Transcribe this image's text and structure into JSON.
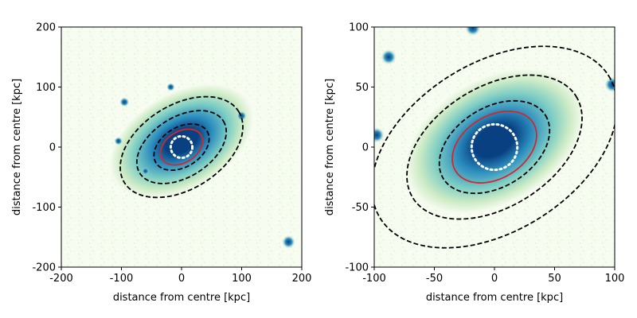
{
  "chart_data": [
    {
      "type": "image",
      "description_role": "left panel",
      "xlabel": "distance from centre [kpc]",
      "ylabel": "distance from centre [kpc]",
      "xlim": [
        -200,
        200
      ],
      "ylim": [
        -200,
        200
      ],
      "xticks": [
        -200,
        -100,
        0,
        100,
        200
      ],
      "yticks": [
        -200,
        -100,
        0,
        100,
        200
      ],
      "colormap": [
        "#f7fcf0",
        "#ccebc5",
        "#7bccc4",
        "#2b8cbe",
        "#084081"
      ],
      "cluster_halo": {
        "cx": 0,
        "cy": 10,
        "rx": 130,
        "ry": 80,
        "angle_deg": -30
      },
      "hotspots": [
        {
          "x": -95,
          "y": 75,
          "r": 8
        },
        {
          "x": -18,
          "y": 100,
          "r": 7
        },
        {
          "x": -105,
          "y": 10,
          "r": 7
        },
        {
          "x": 100,
          "y": 52,
          "r": 8
        },
        {
          "x": 178,
          "y": -158,
          "r": 11
        },
        {
          "x": -60,
          "y": -40,
          "r": 6
        }
      ],
      "ellipses": [
        {
          "cx": 0,
          "cy": 0,
          "rx": 112,
          "ry": 70,
          "angle_deg": -32,
          "color": "#000000",
          "style": "dashed"
        },
        {
          "cx": 0,
          "cy": 0,
          "rx": 82,
          "ry": 50,
          "angle_deg": -32,
          "color": "#000000",
          "style": "dashed"
        },
        {
          "cx": 0,
          "cy": 0,
          "rx": 50,
          "ry": 33,
          "angle_deg": -32,
          "color": "#000000",
          "style": "dashed"
        },
        {
          "cx": 0,
          "cy": 0,
          "rx": 38,
          "ry": 26,
          "angle_deg": -32,
          "color": "#d62728",
          "style": "solid"
        },
        {
          "cx": 0,
          "cy": 0,
          "rx": 18,
          "ry": 18,
          "angle_deg": 0,
          "color": "#ffffff",
          "style": "dotted"
        }
      ]
    },
    {
      "type": "image",
      "description_role": "right panel",
      "xlabel": "distance from centre [kpc]",
      "ylabel": "distance from centre [kpc]",
      "xlim": [
        -100,
        100
      ],
      "ylim": [
        -100,
        100
      ],
      "xticks": [
        -100,
        -50,
        0,
        50,
        100
      ],
      "yticks": [
        -100,
        -50,
        0,
        50,
        100
      ],
      "colormap": [
        "#f7fcf0",
        "#ccebc5",
        "#7bccc4",
        "#2b8cbe",
        "#084081"
      ],
      "cluster_halo": {
        "cx": 0,
        "cy": 5,
        "rx": 80,
        "ry": 52,
        "angle_deg": -30
      },
      "hotspots": [
        {
          "x": -88,
          "y": 75,
          "r": 4
        },
        {
          "x": -18,
          "y": 99,
          "r": 4
        },
        {
          "x": 98,
          "y": 52,
          "r": 4
        },
        {
          "x": -98,
          "y": 10,
          "r": 4
        }
      ],
      "ellipses": [
        {
          "cx": 0,
          "cy": 0,
          "rx": 112,
          "ry": 70,
          "angle_deg": -32,
          "color": "#000000",
          "style": "dashed"
        },
        {
          "cx": 0,
          "cy": 0,
          "rx": 80,
          "ry": 50,
          "angle_deg": -32,
          "color": "#000000",
          "style": "dashed"
        },
        {
          "cx": 0,
          "cy": 0,
          "rx": 50,
          "ry": 33,
          "angle_deg": -32,
          "color": "#000000",
          "style": "dashed"
        },
        {
          "cx": 0,
          "cy": 0,
          "rx": 38,
          "ry": 26,
          "angle_deg": -32,
          "color": "#d62728",
          "style": "solid"
        },
        {
          "cx": 0,
          "cy": 0,
          "rx": 19,
          "ry": 19,
          "angle_deg": 0,
          "color": "#ffffff",
          "style": "dotted"
        }
      ]
    }
  ]
}
